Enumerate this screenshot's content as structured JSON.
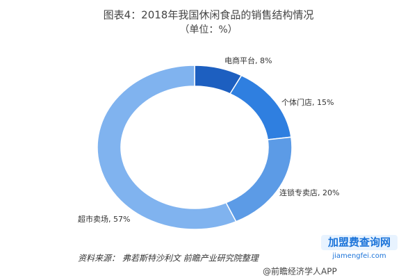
{
  "chart_data": {
    "type": "donut",
    "title": "图表4：2018年我国休闲食品的销售结构情况",
    "subtitle": "（单位：%）",
    "values": [
      8,
      15,
      20,
      57
    ],
    "value_labels": [
      "电商平台, 8%",
      "个体门店, 15%",
      "连锁专卖店, 20%",
      "超市卖场, 57%"
    ],
    "colors": [
      "#1d5fc0",
      "#2f7fe0",
      "#5c9be6",
      "#80b3ef"
    ],
    "source": "资料来源：  弗若斯特沙利文  前瞻产业研究院整理",
    "watermark": "@前瞻经济学人APP",
    "logo": "加盟费查询网",
    "logo_url": "jiamengfei.com"
  }
}
